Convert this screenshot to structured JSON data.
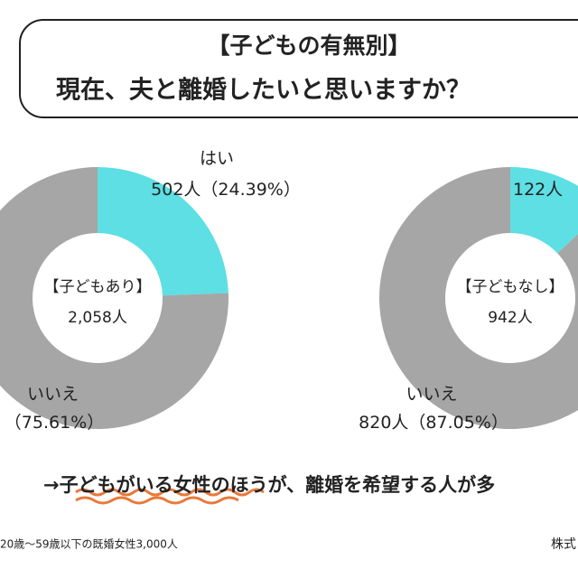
{
  "title": {
    "line1": "【子どもの有無別】",
    "line2": "現在、夫と離婚したいと思いますか？"
  },
  "chart_data": [
    {
      "type": "pie",
      "center_title": "【子どもあり】",
      "center_total": "2,058人",
      "categories": [
        "はい",
        "いいえ"
      ],
      "values": [
        24.39,
        75.61
      ],
      "count_labels": [
        "502人",
        null
      ],
      "value_labels": [
        "（24.39%）",
        "（75.61%）"
      ],
      "colors": [
        "#5ddfe4",
        "#a6a6a6"
      ]
    },
    {
      "type": "pie",
      "center_title": "【子どもなし】",
      "center_total": "942人",
      "categories": [
        null,
        "いいえ"
      ],
      "values": [
        12.95,
        87.05
      ],
      "count_labels": [
        "122人",
        "820人"
      ],
      "value_labels": [
        null,
        "（87.05%）"
      ],
      "colors": [
        "#5ddfe4",
        "#a6a6a6"
      ]
    }
  ],
  "conclusion": "→子どもがいる女性のほうが、離婚を希望する人が多",
  "note": "20歳〜59歳以下の既婚女性3,000人",
  "source": "株式"
}
